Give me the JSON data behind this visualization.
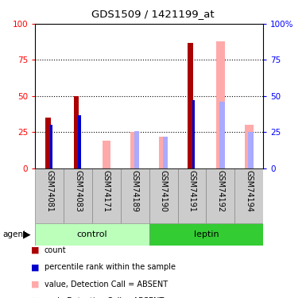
{
  "title": "GDS1509 / 1421199_at",
  "samples": [
    "GSM74081",
    "GSM74083",
    "GSM74171",
    "GSM74189",
    "GSM74190",
    "GSM74191",
    "GSM74192",
    "GSM74194"
  ],
  "count": [
    35,
    50,
    0,
    0,
    0,
    87,
    0,
    0
  ],
  "percentile_rank": [
    30,
    37,
    0,
    0,
    0,
    47,
    0,
    0
  ],
  "value_absent": [
    0,
    0,
    19,
    25,
    22,
    0,
    88,
    30
  ],
  "rank_absent": [
    0,
    0,
    0,
    26,
    22,
    0,
    46,
    25
  ],
  "count_color": "#aa0000",
  "percentile_color": "#0000cc",
  "value_absent_color": "#ffaaaa",
  "rank_absent_color": "#aaaaff",
  "ylim": [
    0,
    100
  ],
  "yticks": [
    0,
    25,
    50,
    75,
    100
  ],
  "control_indices": [
    0,
    1,
    2,
    3
  ],
  "leptin_indices": [
    4,
    5,
    6,
    7
  ],
  "control_color": "#bbffbb",
  "leptin_color": "#33cc33",
  "label_bg_color": "#cccccc",
  "figsize": [
    3.85,
    3.75
  ],
  "dpi": 100
}
